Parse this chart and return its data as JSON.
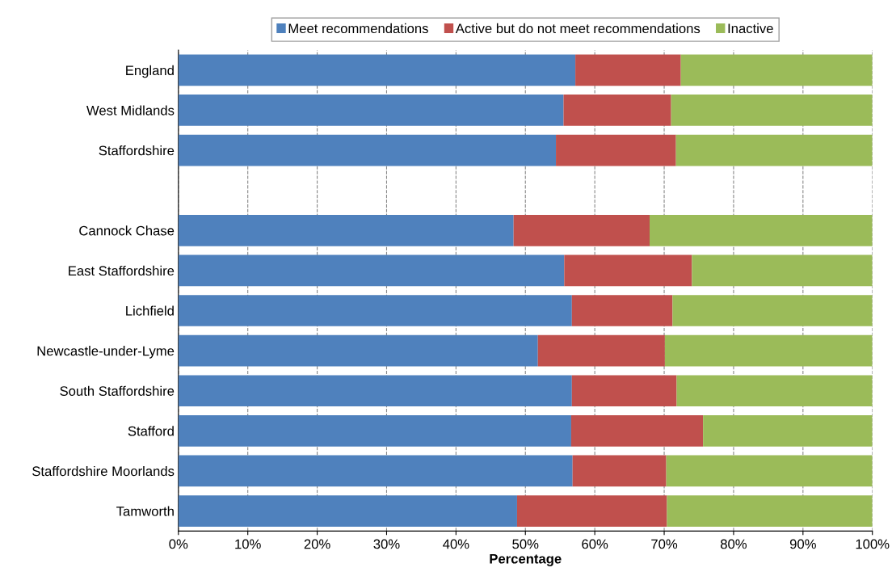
{
  "chart_data": {
    "type": "bar",
    "orientation": "horizontal",
    "stacked": true,
    "xlabel": "Percentage",
    "categories": [
      "England",
      "West Midlands",
      "Staffordshire",
      null,
      "Cannock Chase",
      "East Staffordshire",
      "Lichfield",
      "Newcastle-under-Lyme",
      "South Staffordshire",
      "Stafford",
      "Staffordshire Moorlands",
      "Tamworth"
    ],
    "series": [
      {
        "name": "Meet recommendations",
        "color": "#4f81bd",
        "values": [
          57.2,
          55.5,
          54.4,
          null,
          48.3,
          55.6,
          56.7,
          51.8,
          56.7,
          56.6,
          56.8,
          48.8
        ]
      },
      {
        "name": "Active but do not meet recommendations",
        "color": "#c0504d",
        "values": [
          15.2,
          15.5,
          17.3,
          null,
          19.6,
          18.4,
          14.5,
          18.3,
          15.1,
          19.0,
          13.5,
          21.6
        ]
      },
      {
        "name": "Inactive",
        "color": "#9bbb59",
        "values": [
          27.6,
          29.0,
          28.3,
          null,
          32.1,
          26.0,
          28.8,
          29.9,
          28.2,
          24.4,
          29.7,
          29.6
        ]
      }
    ],
    "xlim": [
      0,
      100
    ],
    "xticks": [
      {
        "value": 0,
        "label": "0%"
      },
      {
        "value": 10,
        "label": "10%"
      },
      {
        "value": 20,
        "label": "20%"
      },
      {
        "value": 30,
        "label": "30%"
      },
      {
        "value": 40,
        "label": "40%"
      },
      {
        "value": 50,
        "label": "50%"
      },
      {
        "value": 60,
        "label": "60%"
      },
      {
        "value": 70,
        "label": "70%"
      },
      {
        "value": 80,
        "label": "80%"
      },
      {
        "value": 90,
        "label": "90%"
      },
      {
        "value": 100,
        "label": "100%"
      }
    ],
    "grid": "x",
    "legend": "top"
  }
}
